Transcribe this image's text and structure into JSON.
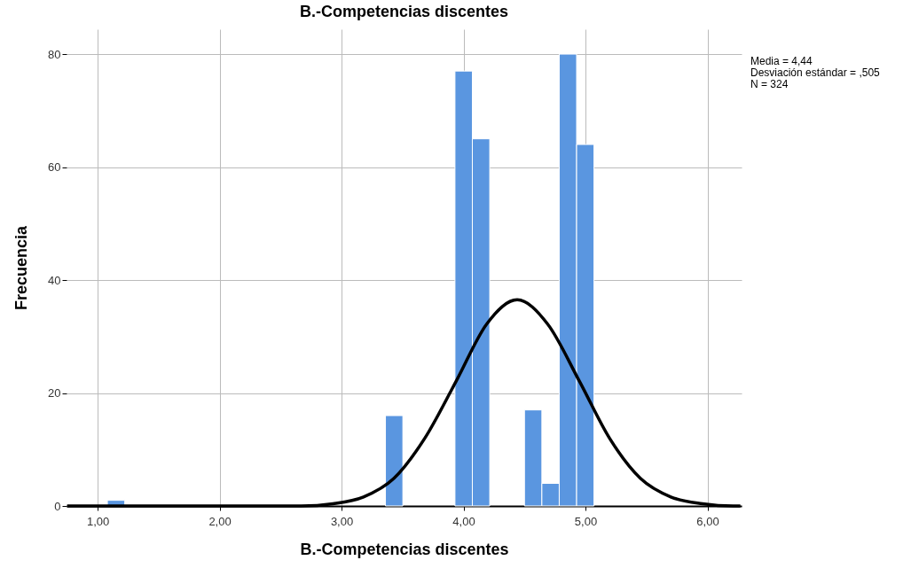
{
  "chart_data": {
    "type": "histogram",
    "title": "B.-Competencias discentes",
    "xlabel": "B.-Competencias discentes",
    "ylabel": "Frecuencia",
    "bins": [
      1.08,
      1.2225,
      1.365,
      1.5075,
      1.65,
      1.7925,
      1.935,
      2.0775,
      2.22,
      2.3625,
      2.505,
      2.6475,
      2.79,
      2.9325,
      3.075,
      3.2175,
      3.36,
      3.5025,
      3.645,
      3.7875,
      3.93,
      4.0725,
      4.215,
      4.3575,
      4.5,
      4.6425,
      4.785,
      4.9275,
      5.07
    ],
    "series": [
      {
        "color": "#5a96e0",
        "values": [
          1,
          0,
          0,
          0,
          0,
          0,
          0,
          0,
          0,
          0,
          0,
          0,
          0,
          0,
          0,
          0,
          16,
          0,
          0,
          0,
          77,
          65,
          0,
          0,
          17,
          4,
          80,
          64
        ]
      },
      {
        "type": "line",
        "color": "#000000",
        "x": [
          0.75,
          2.4,
          2.67,
          2.93,
          3.18,
          3.43,
          3.68,
          3.94,
          4.19,
          4.44,
          4.69,
          4.95,
          5.2,
          5.45,
          5.7,
          5.96,
          6.21,
          6.27
        ],
        "values": [
          0,
          0,
          0,
          0.4,
          1.6,
          4.9,
          11.9,
          22.1,
          32.2,
          36.5,
          32.2,
          22.1,
          11.9,
          4.9,
          1.6,
          0.4,
          0,
          0
        ]
      }
    ],
    "xlim": [
      0.745,
      6.28
    ],
    "xticks": [
      {
        "value": 1,
        "label": "1,00"
      },
      {
        "value": 2,
        "label": "2,00"
      },
      {
        "value": 3,
        "label": "3,00"
      },
      {
        "value": 4,
        "label": "4,00"
      },
      {
        "value": 5,
        "label": "5,00"
      },
      {
        "value": 6,
        "label": "6,00"
      }
    ],
    "ylim": [
      0,
      84.4
    ],
    "yticks": [
      0,
      20,
      40,
      60,
      80
    ],
    "grid": true,
    "annotations": [
      "Media = 4,44",
      "Desviación estándar = ,505",
      "N = 324"
    ]
  }
}
